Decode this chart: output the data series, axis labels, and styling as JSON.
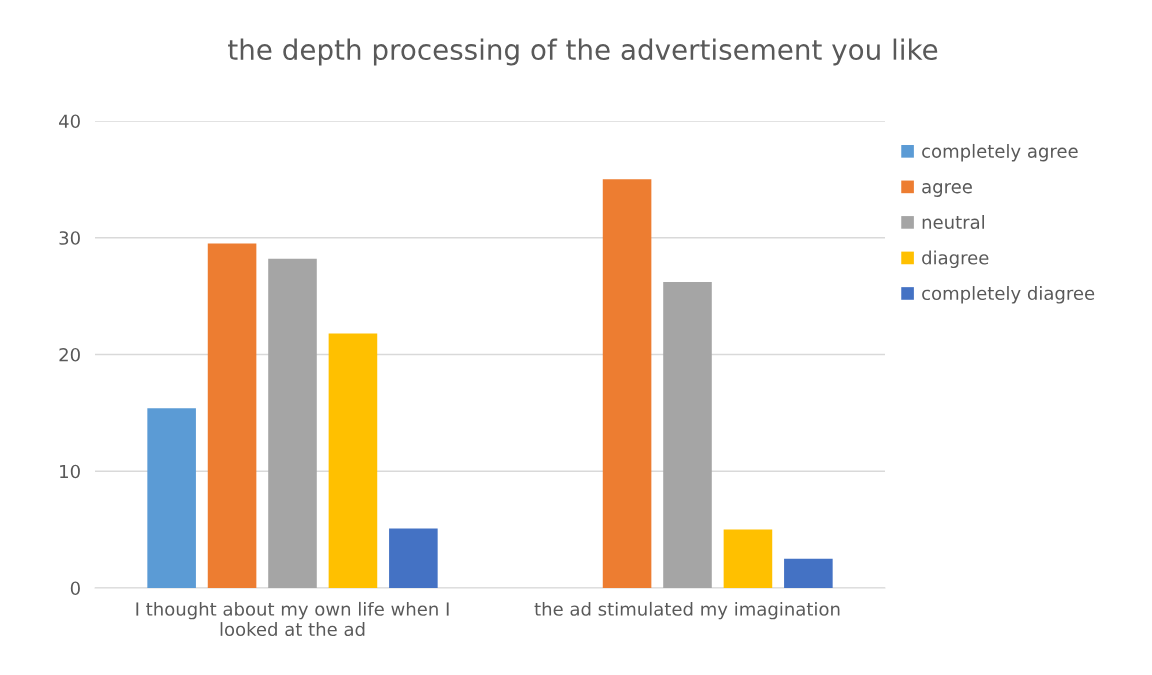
{
  "chart_data": {
    "type": "bar",
    "title": "the depth processing of the advertisement you like",
    "categories": [
      "I thought about my own life when I\nlooked at the ad",
      "the ad stimulated my imagination"
    ],
    "series": [
      {
        "name": "completely agree",
        "color": "#5b9bd5",
        "values": [
          15.4,
          0
        ]
      },
      {
        "name": "agree",
        "color": "#ed7d31",
        "values": [
          29.5,
          35
        ]
      },
      {
        "name": "neutral",
        "color": "#a5a5a5",
        "values": [
          28.2,
          26.2
        ]
      },
      {
        "name": "diagree",
        "color": "#ffc000",
        "values": [
          21.8,
          5
        ]
      },
      {
        "name": "completely diagree",
        "color": "#4472c4",
        "values": [
          5.1,
          2.5
        ]
      }
    ],
    "ylim": [
      0,
      40
    ],
    "yticks": [
      0,
      10,
      20,
      30,
      40
    ],
    "grid": "y",
    "legend": "right"
  }
}
